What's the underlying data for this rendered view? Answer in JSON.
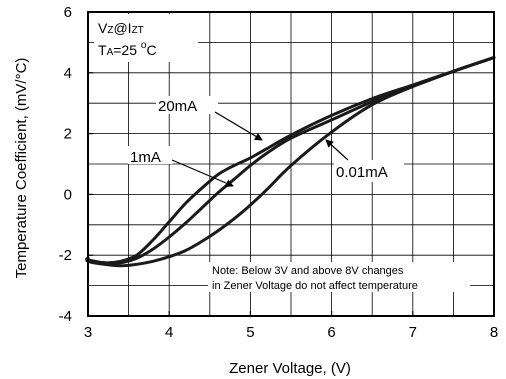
{
  "chart_data": {
    "type": "line",
    "xlabel": "Zener Voltage, (V)",
    "ylabel": "Temperature Coefficient, (mV/°C)",
    "xlim": [
      3,
      8
    ],
    "ylim": [
      -4,
      6
    ],
    "x_ticks": [
      "3",
      "4",
      "5",
      "6",
      "7",
      "8"
    ],
    "y_ticks": [
      "-4",
      "-2",
      "0",
      "2",
      "4",
      "6"
    ],
    "grid": true,
    "conditions": {
      "line1_main": "V",
      "line1_sub1": "Z",
      "line1_mid": "@I",
      "line1_sub2": "ZT",
      "line2_main": "T",
      "line2_sub": "A",
      "line2_value": "=25 ",
      "line2_deg": "o",
      "line2_unit": "C"
    },
    "note": {
      "line1": "Note: Below 3V and above 8V changes",
      "line2": "in Zener Voltage do not affect temperature"
    },
    "series": [
      {
        "name": "20mA",
        "x": [
          2.95,
          3.0,
          3.2,
          3.4,
          3.6,
          3.8,
          4.0,
          4.2,
          4.4,
          4.6,
          4.8,
          5.0,
          5.2,
          5.5,
          6.0,
          6.5,
          7.0,
          7.5,
          8.0
        ],
        "y": [
          -2.1,
          -2.15,
          -2.25,
          -2.2,
          -2.0,
          -1.5,
          -0.9,
          -0.3,
          0.2,
          0.65,
          0.95,
          1.2,
          1.5,
          1.95,
          2.6,
          3.15,
          3.6,
          4.05,
          4.5
        ]
      },
      {
        "name": "1mA",
        "x": [
          2.95,
          3.0,
          3.2,
          3.4,
          3.6,
          3.8,
          4.0,
          4.2,
          4.4,
          4.6,
          4.8,
          5.0,
          5.2,
          5.5,
          6.0,
          6.5,
          7.0,
          7.5,
          8.0
        ],
        "y": [
          -2.1,
          -2.15,
          -2.25,
          -2.25,
          -2.1,
          -1.8,
          -1.4,
          -0.95,
          -0.45,
          0.05,
          0.5,
          0.95,
          1.35,
          1.85,
          2.45,
          3.05,
          3.55,
          4.05,
          4.5
        ]
      },
      {
        "name": "0.01mA",
        "x": [
          2.95,
          3.0,
          3.2,
          3.4,
          3.6,
          3.8,
          4.0,
          4.2,
          4.4,
          4.6,
          4.8,
          5.0,
          5.2,
          5.5,
          6.0,
          6.5,
          7.0,
          7.5,
          8.0
        ],
        "y": [
          -2.1,
          -2.2,
          -2.3,
          -2.35,
          -2.3,
          -2.2,
          -2.05,
          -1.85,
          -1.55,
          -1.2,
          -0.8,
          -0.35,
          0.15,
          0.95,
          2.05,
          2.95,
          3.55,
          4.05,
          4.5
        ]
      }
    ],
    "annotations": [
      "20mA",
      "1mA",
      "0.01mA"
    ]
  }
}
